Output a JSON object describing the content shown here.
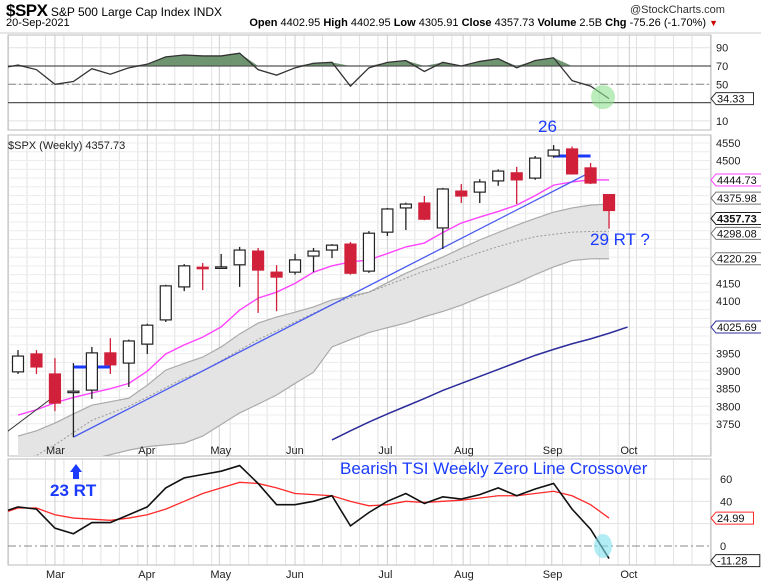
{
  "header": {
    "symbol": "$SPX",
    "name": "S&P 500 Large Cap Index",
    "exchange": "INDX",
    "credit": "@StockCharts.com",
    "date": "20-Sep-2021",
    "open_label": "Open",
    "open": "4402.95",
    "high_label": "High",
    "high": "4402.95",
    "low_label": "Low",
    "low": "4305.91",
    "close_label": "Close",
    "close": "4357.73",
    "volume_label": "Volume",
    "volume": "2.5B",
    "chg_label": "Chg",
    "chg": "-75.26 (-1.70%)",
    "chg_arrow": "▼"
  },
  "colors": {
    "up": "#ffffff",
    "down": "#d0203a",
    "ma_fast": "#ff44ff",
    "trend": "#4a5cf0",
    "ma_slow": "#2c2c9a",
    "band": "#e4e4e4",
    "rsi_fill": "#6f9470",
    "tsi": "#111111",
    "signal": "#ff2a2a",
    "annot": "#1a3bff"
  },
  "chart_data": [
    {
      "type": "line",
      "title": "RSI",
      "ylim": [
        0,
        100
      ],
      "yticks": [
        "90",
        "70",
        "50",
        "10"
      ],
      "ytick_values": [
        90,
        70,
        50,
        10
      ],
      "reference_lines": [
        70,
        50,
        30
      ],
      "values": [
        71,
        66,
        50,
        53,
        67,
        61,
        68,
        72,
        80,
        82,
        81,
        81,
        84,
        66,
        60,
        68,
        73,
        74,
        48,
        68,
        74,
        76,
        64,
        74,
        70,
        75,
        78,
        68,
        76,
        79,
        54,
        48,
        34.33
      ],
      "last_label": "34.33"
    },
    {
      "type": "candlestick",
      "title": "$SPX (Weekly) 4357.73",
      "ylim": [
        3720,
        4570
      ],
      "yticks": [
        "4550",
        "4500",
        "4400",
        "4350",
        "4300",
        "4250",
        "4200",
        "4150",
        "4100",
        "4050",
        "4000",
        "3950",
        "3900",
        "3850",
        "3800",
        "3750"
      ],
      "ytick_values": [
        4550,
        4500,
        4400,
        4350,
        4300,
        4250,
        4200,
        4150,
        4100,
        4050,
        4000,
        3950,
        3900,
        3850,
        3800,
        3750
      ],
      "xticks": [
        "Mar",
        "Apr",
        "May",
        "Jun",
        "Jul",
        "Aug",
        "Sep",
        "Oct"
      ],
      "xtick_weeks": [
        3.0,
        8.0,
        11.9,
        16.0,
        21.0,
        25.1,
        29.9,
        34.1
      ],
      "candles": [
        [
          3898,
          3960,
          3892,
          3943
        ],
        [
          3949,
          3960,
          3892,
          3912
        ],
        [
          3892,
          3937,
          3786,
          3809
        ],
        [
          3840,
          3923,
          3712,
          3843
        ],
        [
          3846,
          3969,
          3821,
          3952
        ],
        [
          3952,
          3994,
          3892,
          3918
        ],
        [
          3923,
          3990,
          3855,
          3986
        ],
        [
          3977,
          4035,
          3949,
          4031
        ],
        [
          4046,
          4146,
          4040,
          4143
        ],
        [
          4140,
          4205,
          4128,
          4200
        ],
        [
          4196,
          4208,
          4131,
          4194
        ],
        [
          4197,
          4234,
          4191,
          4197
        ],
        [
          4203,
          4254,
          4140,
          4245
        ],
        [
          4242,
          4251,
          4066,
          4188
        ],
        [
          4182,
          4202,
          4071,
          4168
        ],
        [
          4182,
          4234,
          4175,
          4217
        ],
        [
          4228,
          4251,
          4182,
          4242
        ],
        [
          4245,
          4262,
          4222,
          4259
        ],
        [
          4262,
          4268,
          4175,
          4179
        ],
        [
          4185,
          4299,
          4180,
          4293
        ],
        [
          4296,
          4365,
          4285,
          4362
        ],
        [
          4365,
          4380,
          4302,
          4376
        ],
        [
          4379,
          4399,
          4330,
          4333
        ],
        [
          4308,
          4422,
          4248,
          4419
        ],
        [
          4413,
          4433,
          4379,
          4399
        ],
        [
          4410,
          4447,
          4379,
          4439
        ],
        [
          4442,
          4475,
          4428,
          4470
        ],
        [
          4465,
          4482,
          4376,
          4445
        ],
        [
          4450,
          4513,
          4445,
          4507
        ],
        [
          4513,
          4544,
          4508,
          4530
        ],
        [
          4533,
          4540,
          4460,
          4462
        ],
        [
          4479,
          4493,
          4433,
          4436
        ],
        [
          4402.95,
          4402.95,
          4305.91,
          4357.73
        ]
      ],
      "candle_fields": [
        "open",
        "high",
        "low",
        "close"
      ],
      "ma_fast": [
        3775,
        3790,
        3810,
        3825,
        3838,
        3850,
        3865,
        3900,
        3949,
        3975,
        3997,
        4026,
        4074,
        4108,
        4125,
        4150,
        4182,
        4200,
        4211,
        4217,
        4235,
        4254,
        4265,
        4295,
        4322,
        4339,
        4355,
        4373,
        4400,
        4430,
        4439,
        4445,
        4444.73
      ],
      "bb_upper": [
        3715,
        3730,
        3752,
        3778,
        3803,
        3813,
        3823,
        3860,
        3903,
        3922,
        3940,
        3969,
        4006,
        4037,
        4054,
        4068,
        4083,
        4103,
        4114,
        4125,
        4152,
        4179,
        4202,
        4225,
        4250,
        4274,
        4295,
        4316,
        4335,
        4353,
        4365,
        4373,
        4375.98
      ],
      "bb_middle": [
        3640,
        3660,
        3690,
        3725,
        3760,
        3780,
        3800,
        3826,
        3853,
        3880,
        3900,
        3930,
        3960,
        3990,
        4015,
        4040,
        4065,
        4090,
        4110,
        4125,
        4145,
        4165,
        4185,
        4200,
        4220,
        4238,
        4255,
        4270,
        4283,
        4290,
        4296,
        4298,
        4298.08
      ],
      "bb_lower": [
        3560,
        3585,
        3610,
        3635,
        3650,
        3662,
        3675,
        3685,
        3690,
        3695,
        3715,
        3748,
        3781,
        3806,
        3832,
        3865,
        3897,
        3969,
        3990,
        4010,
        4024,
        4037,
        4055,
        4070,
        4088,
        4110,
        4130,
        4151,
        4175,
        4197,
        4215,
        4220,
        4220.29
      ],
      "ma_slow_start_week": 18,
      "ma_slow": [
        3704,
        3730,
        3755,
        3778,
        3800,
        3822,
        3845,
        3865,
        3885,
        3905,
        3925,
        3945,
        3962,
        3978,
        3992,
        4008,
        4025.69
      ],
      "trendline": {
        "from_week": 4,
        "from": 3712,
        "to_week": 32,
        "to": 4467
      },
      "left_trendline": {
        "from_week": 0,
        "from": 3712,
        "to_week": 3,
        "to": 3830
      },
      "resistance_1": {
        "from_week": 4,
        "to_week": 6,
        "value": 3912
      },
      "resistance_2": {
        "from_week": 30,
        "to_week": 32,
        "value": 4513
      },
      "tags": {
        "ma_fast": "4444.73",
        "bb_upper": "4375.98",
        "close": "4357.73",
        "bb_middle": "4298.08",
        "bb_lower": "4220.29",
        "ma_slow": "4025.69"
      }
    },
    {
      "type": "line",
      "title": "TSI",
      "ylim": [
        -18,
        80
      ],
      "yticks": [
        "60",
        "40",
        "20",
        "0"
      ],
      "ytick_values": [
        60,
        40,
        20,
        0
      ],
      "xticks": [
        "Mar",
        "Apr",
        "May",
        "Jun",
        "Jul",
        "Aug",
        "Sep",
        "Oct"
      ],
      "series": [
        {
          "name": "TSI",
          "values": [
            35,
            33,
            16,
            11,
            21,
            21,
            28,
            35,
            52,
            61,
            64,
            67,
            72,
            56,
            37,
            37,
            40,
            45,
            18,
            30,
            40,
            47,
            38,
            44,
            42,
            46,
            52,
            45,
            51,
            56,
            33,
            15,
            -11.28
          ]
        },
        {
          "name": "Signal",
          "values": [
            34,
            34,
            28,
            25,
            24,
            23,
            25,
            28,
            33,
            40,
            47,
            52,
            57,
            56,
            52,
            47,
            46,
            45,
            40,
            36,
            37,
            40,
            39,
            40,
            41,
            43,
            45,
            45,
            47,
            49,
            45,
            37,
            24.99
          ]
        }
      ],
      "tags": {
        "tsi": "-11.28",
        "signal": "24.99"
      }
    }
  ],
  "annotations": {
    "count_26": "26",
    "count_29": "29 RT ?",
    "count_23": "23 RT",
    "tsi_note": "Bearish TSI Weekly Zero Line Crossover"
  }
}
